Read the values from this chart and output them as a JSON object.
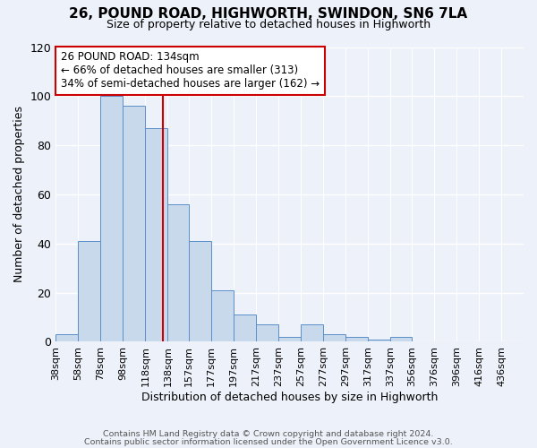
{
  "title": "26, POUND ROAD, HIGHWORTH, SWINDON, SN6 7LA",
  "subtitle": "Size of property relative to detached houses in Highworth",
  "xlabel": "Distribution of detached houses by size in Highworth",
  "ylabel": "Number of detached properties",
  "bar_color": "#c9d9ec",
  "bar_edge_color": "#5b8fc8",
  "background_color": "#edf1f9",
  "grid_color": "#ffffff",
  "bin_labels": [
    "38sqm",
    "58sqm",
    "78sqm",
    "98sqm",
    "118sqm",
    "138sqm",
    "157sqm",
    "177sqm",
    "197sqm",
    "217sqm",
    "237sqm",
    "257sqm",
    "277sqm",
    "297sqm",
    "317sqm",
    "337sqm",
    "356sqm",
    "376sqm",
    "396sqm",
    "416sqm",
    "436sqm"
  ],
  "bin_values": [
    3,
    41,
    100,
    96,
    87,
    56,
    41,
    21,
    11,
    7,
    2,
    7,
    3,
    2,
    1,
    2,
    0,
    0,
    0,
    0,
    0
  ],
  "bin_edges": [
    38,
    58,
    78,
    98,
    118,
    138,
    157,
    177,
    197,
    217,
    237,
    257,
    277,
    297,
    317,
    337,
    356,
    376,
    396,
    416,
    436
  ],
  "vline_x": 134,
  "vline_color": "#cc0000",
  "ylim": [
    0,
    120
  ],
  "yticks": [
    0,
    20,
    40,
    60,
    80,
    100,
    120
  ],
  "annotation_title": "26 POUND ROAD: 134sqm",
  "annotation_line1": "← 66% of detached houses are smaller (313)",
  "annotation_line2": "34% of semi-detached houses are larger (162) →",
  "annotation_box_color": "#ffffff",
  "annotation_box_edge": "#cc0000",
  "footer_line1": "Contains HM Land Registry data © Crown copyright and database right 2024.",
  "footer_line2": "Contains public sector information licensed under the Open Government Licence v3.0."
}
